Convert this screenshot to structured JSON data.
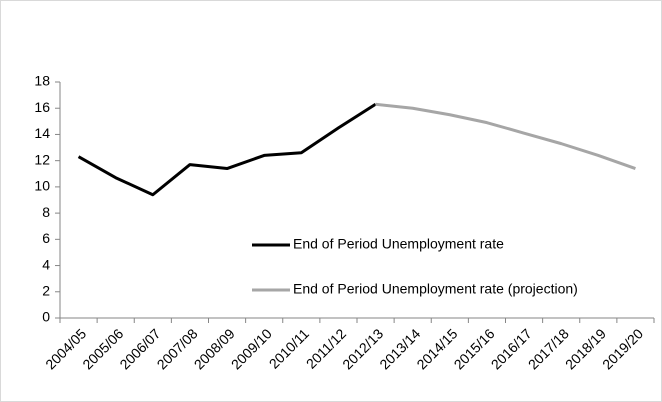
{
  "chart_data": {
    "type": "line",
    "categories": [
      "2004/05",
      "2005/06",
      "2006/07",
      "2007/08",
      "2008/09",
      "2009/10",
      "2010/11",
      "2011/12",
      "2012/13",
      "2013/14",
      "2014/15",
      "2015/16",
      "2016/17",
      "2017/18",
      "2018/19",
      "2019/20"
    ],
    "series": [
      {
        "name": "End of Period Unemployment rate",
        "color": "#000000",
        "values": [
          12.3,
          10.7,
          9.4,
          11.7,
          11.4,
          12.4,
          12.6,
          14.5,
          16.3,
          null,
          null,
          null,
          null,
          null,
          null,
          null
        ]
      },
      {
        "name": "End of Period Unemployment rate (projection)",
        "color": "#a6a6a6",
        "values": [
          null,
          null,
          null,
          null,
          null,
          null,
          null,
          null,
          16.3,
          16.0,
          15.5,
          14.9,
          14.1,
          13.3,
          12.4,
          11.4
        ]
      }
    ],
    "ylim": [
      0,
      18
    ],
    "yticks": [
      0,
      2,
      4,
      6,
      8,
      10,
      12,
      14,
      16,
      18
    ],
    "grid": false
  }
}
